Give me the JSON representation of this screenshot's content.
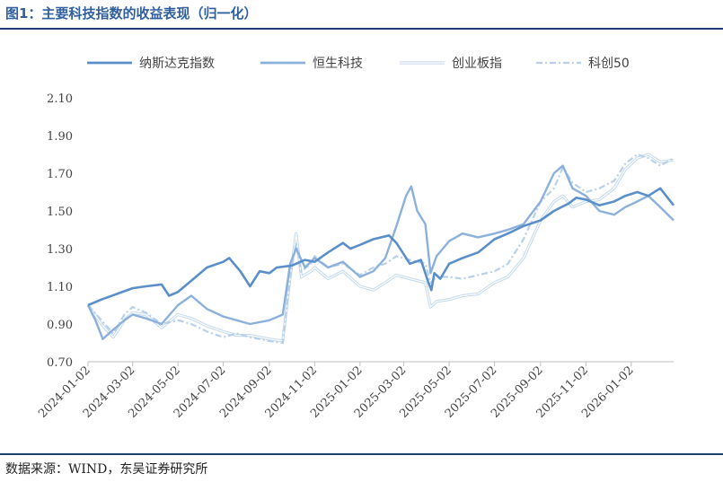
{
  "header": {
    "title": "图1：主要科技指数的收益表现（归一化）"
  },
  "footer": {
    "source": "数据来源：WIND，东吴证券研究所"
  },
  "chart_data": {
    "type": "line",
    "title": "主要科技指数的收益表现（归一化）",
    "xlabel": "",
    "ylabel": "",
    "ylim": [
      0.7,
      2.1
    ],
    "yticks": [
      "0.70",
      "0.90",
      "1.10",
      "1.30",
      "1.50",
      "1.70",
      "1.90",
      "2.10"
    ],
    "xticks": [
      "2024-01-02",
      "2024-03-02",
      "2024-05-02",
      "2024-07-02",
      "2024-09-02",
      "2024-11-02",
      "2025-01-02",
      "2025-03-02",
      "2025-05-02",
      "2025-07-02",
      "2025-09-02",
      "2025-11-02",
      "2026-01-02"
    ],
    "x_end": "2026-02-28",
    "legend_position": "top",
    "series": [
      {
        "name": "纳斯达克指数",
        "color": "#5b8fc9",
        "style": "solid",
        "points": [
          [
            "2024-01-02",
            1.0
          ],
          [
            "2024-01-20",
            1.03
          ],
          [
            "2024-02-10",
            1.06
          ],
          [
            "2024-03-02",
            1.09
          ],
          [
            "2024-03-20",
            1.1
          ],
          [
            "2024-04-10",
            1.11
          ],
          [
            "2024-04-20",
            1.05
          ],
          [
            "2024-05-02",
            1.07
          ],
          [
            "2024-05-20",
            1.13
          ],
          [
            "2024-06-10",
            1.2
          ],
          [
            "2024-07-02",
            1.23
          ],
          [
            "2024-07-10",
            1.25
          ],
          [
            "2024-07-25",
            1.18
          ],
          [
            "2024-08-07",
            1.1
          ],
          [
            "2024-08-20",
            1.18
          ],
          [
            "2024-09-02",
            1.17
          ],
          [
            "2024-09-12",
            1.2
          ],
          [
            "2024-10-02",
            1.21
          ],
          [
            "2024-10-20",
            1.24
          ],
          [
            "2024-11-02",
            1.23
          ],
          [
            "2024-11-20",
            1.28
          ],
          [
            "2024-12-10",
            1.33
          ],
          [
            "2024-12-20",
            1.3
          ],
          [
            "2025-01-02",
            1.32
          ],
          [
            "2025-01-20",
            1.35
          ],
          [
            "2025-02-10",
            1.37
          ],
          [
            "2025-02-20",
            1.33
          ],
          [
            "2025-03-10",
            1.22
          ],
          [
            "2025-03-25",
            1.24
          ],
          [
            "2025-04-04",
            1.12
          ],
          [
            "2025-04-08",
            1.08
          ],
          [
            "2025-04-12",
            1.17
          ],
          [
            "2025-04-20",
            1.14
          ],
          [
            "2025-05-02",
            1.22
          ],
          [
            "2025-05-20",
            1.25
          ],
          [
            "2025-06-10",
            1.28
          ],
          [
            "2025-07-02",
            1.35
          ],
          [
            "2025-07-20",
            1.38
          ],
          [
            "2025-08-10",
            1.42
          ],
          [
            "2025-09-02",
            1.45
          ],
          [
            "2025-09-20",
            1.5
          ],
          [
            "2025-10-10",
            1.54
          ],
          [
            "2025-10-20",
            1.57
          ],
          [
            "2025-11-02",
            1.56
          ],
          [
            "2025-11-20",
            1.53
          ],
          [
            "2025-12-10",
            1.55
          ],
          [
            "2025-12-25",
            1.58
          ],
          [
            "2026-01-10",
            1.6
          ],
          [
            "2026-01-25",
            1.58
          ],
          [
            "2026-02-10",
            1.62
          ],
          [
            "2026-02-28",
            1.53
          ]
        ]
      },
      {
        "name": "恒生科技",
        "color": "#8cb0dc",
        "style": "solid",
        "points": [
          [
            "2024-01-02",
            1.0
          ],
          [
            "2024-01-12",
            0.92
          ],
          [
            "2024-01-22",
            0.82
          ],
          [
            "2024-02-02",
            0.86
          ],
          [
            "2024-02-20",
            0.92
          ],
          [
            "2024-03-02",
            0.95
          ],
          [
            "2024-03-20",
            0.93
          ],
          [
            "2024-04-10",
            0.9
          ],
          [
            "2024-05-02",
            1.0
          ],
          [
            "2024-05-20",
            1.05
          ],
          [
            "2024-06-10",
            0.98
          ],
          [
            "2024-07-02",
            0.94
          ],
          [
            "2024-07-20",
            0.92
          ],
          [
            "2024-08-07",
            0.9
          ],
          [
            "2024-09-02",
            0.92
          ],
          [
            "2024-09-20",
            0.95
          ],
          [
            "2024-09-30",
            1.22
          ],
          [
            "2024-10-08",
            1.3
          ],
          [
            "2024-10-20",
            1.2
          ],
          [
            "2024-11-02",
            1.25
          ],
          [
            "2024-11-20",
            1.2
          ],
          [
            "2024-12-10",
            1.23
          ],
          [
            "2025-01-02",
            1.15
          ],
          [
            "2025-01-20",
            1.18
          ],
          [
            "2025-02-05",
            1.25
          ],
          [
            "2025-02-20",
            1.42
          ],
          [
            "2025-03-05",
            1.58
          ],
          [
            "2025-03-12",
            1.63
          ],
          [
            "2025-03-20",
            1.5
          ],
          [
            "2025-03-31",
            1.43
          ],
          [
            "2025-04-07",
            1.17
          ],
          [
            "2025-04-15",
            1.26
          ],
          [
            "2025-05-02",
            1.34
          ],
          [
            "2025-05-20",
            1.38
          ],
          [
            "2025-06-10",
            1.36
          ],
          [
            "2025-07-02",
            1.38
          ],
          [
            "2025-07-20",
            1.4
          ],
          [
            "2025-08-10",
            1.43
          ],
          [
            "2025-09-02",
            1.55
          ],
          [
            "2025-09-20",
            1.7
          ],
          [
            "2025-10-02",
            1.74
          ],
          [
            "2025-10-15",
            1.62
          ],
          [
            "2025-11-02",
            1.58
          ],
          [
            "2025-11-20",
            1.5
          ],
          [
            "2025-12-10",
            1.48
          ],
          [
            "2025-12-25",
            1.52
          ],
          [
            "2026-01-10",
            1.55
          ],
          [
            "2026-01-25",
            1.58
          ],
          [
            "2026-02-10",
            1.52
          ],
          [
            "2026-02-28",
            1.45
          ]
        ]
      },
      {
        "name": "创业板指",
        "color": "#c3d8ee",
        "style": "double",
        "points": [
          [
            "2024-01-02",
            1.0
          ],
          [
            "2024-01-20",
            0.9
          ],
          [
            "2024-02-05",
            0.83
          ],
          [
            "2024-02-20",
            0.92
          ],
          [
            "2024-03-02",
            0.96
          ],
          [
            "2024-03-20",
            0.95
          ],
          [
            "2024-04-10",
            0.88
          ],
          [
            "2024-05-02",
            0.95
          ],
          [
            "2024-05-20",
            0.93
          ],
          [
            "2024-06-10",
            0.89
          ],
          [
            "2024-07-02",
            0.86
          ],
          [
            "2024-07-20",
            0.84
          ],
          [
            "2024-08-07",
            0.84
          ],
          [
            "2024-09-02",
            0.82
          ],
          [
            "2024-09-20",
            0.81
          ],
          [
            "2024-09-30",
            1.15
          ],
          [
            "2024-10-08",
            1.38
          ],
          [
            "2024-10-15",
            1.15
          ],
          [
            "2024-10-28",
            1.18
          ],
          [
            "2024-11-02",
            1.2
          ],
          [
            "2024-11-20",
            1.14
          ],
          [
            "2024-12-10",
            1.18
          ],
          [
            "2025-01-02",
            1.1
          ],
          [
            "2025-01-20",
            1.08
          ],
          [
            "2025-02-05",
            1.12
          ],
          [
            "2025-02-20",
            1.16
          ],
          [
            "2025-03-10",
            1.14
          ],
          [
            "2025-03-31",
            1.12
          ],
          [
            "2025-04-07",
            0.99
          ],
          [
            "2025-04-15",
            1.02
          ],
          [
            "2025-05-02",
            1.03
          ],
          [
            "2025-05-20",
            1.05
          ],
          [
            "2025-06-10",
            1.06
          ],
          [
            "2025-07-02",
            1.12
          ],
          [
            "2025-07-20",
            1.15
          ],
          [
            "2025-08-10",
            1.25
          ],
          [
            "2025-09-02",
            1.45
          ],
          [
            "2025-09-20",
            1.55
          ],
          [
            "2025-10-02",
            1.58
          ],
          [
            "2025-10-15",
            1.52
          ],
          [
            "2025-11-02",
            1.55
          ],
          [
            "2025-11-20",
            1.56
          ],
          [
            "2025-12-10",
            1.62
          ],
          [
            "2025-12-25",
            1.72
          ],
          [
            "2026-01-10",
            1.78
          ],
          [
            "2026-01-25",
            1.8
          ],
          [
            "2026-02-10",
            1.76
          ],
          [
            "2026-02-28",
            1.77
          ]
        ]
      },
      {
        "name": "科创50",
        "color": "#b8d0ea",
        "style": "dashdot",
        "points": [
          [
            "2024-01-02",
            1.0
          ],
          [
            "2024-01-20",
            0.92
          ],
          [
            "2024-02-05",
            0.85
          ],
          [
            "2024-02-20",
            0.95
          ],
          [
            "2024-03-02",
            0.99
          ],
          [
            "2024-03-20",
            0.96
          ],
          [
            "2024-04-10",
            0.9
          ],
          [
            "2024-05-02",
            0.92
          ],
          [
            "2024-05-20",
            0.9
          ],
          [
            "2024-06-10",
            0.86
          ],
          [
            "2024-07-02",
            0.83
          ],
          [
            "2024-07-20",
            0.85
          ],
          [
            "2024-08-07",
            0.83
          ],
          [
            "2024-09-02",
            0.81
          ],
          [
            "2024-09-20",
            0.8
          ],
          [
            "2024-09-30",
            1.15
          ],
          [
            "2024-10-08",
            1.33
          ],
          [
            "2024-10-15",
            1.18
          ],
          [
            "2024-10-28",
            1.22
          ],
          [
            "2024-11-02",
            1.26
          ],
          [
            "2024-11-20",
            1.2
          ],
          [
            "2024-12-10",
            1.22
          ],
          [
            "2025-01-02",
            1.16
          ],
          [
            "2025-01-20",
            1.2
          ],
          [
            "2025-02-05",
            1.22
          ],
          [
            "2025-02-20",
            1.26
          ],
          [
            "2025-03-10",
            1.24
          ],
          [
            "2025-03-31",
            1.22
          ],
          [
            "2025-04-07",
            1.12
          ],
          [
            "2025-04-15",
            1.15
          ],
          [
            "2025-05-02",
            1.15
          ],
          [
            "2025-05-20",
            1.14
          ],
          [
            "2025-06-10",
            1.16
          ],
          [
            "2025-07-02",
            1.18
          ],
          [
            "2025-07-20",
            1.22
          ],
          [
            "2025-08-10",
            1.35
          ],
          [
            "2025-09-02",
            1.55
          ],
          [
            "2025-09-20",
            1.62
          ],
          [
            "2025-10-02",
            1.73
          ],
          [
            "2025-10-15",
            1.65
          ],
          [
            "2025-11-02",
            1.6
          ],
          [
            "2025-11-20",
            1.62
          ],
          [
            "2025-12-10",
            1.66
          ],
          [
            "2025-12-25",
            1.75
          ],
          [
            "2026-01-10",
            1.8
          ],
          [
            "2026-01-25",
            1.78
          ],
          [
            "2026-02-10",
            1.74
          ],
          [
            "2026-02-28",
            1.78
          ]
        ]
      }
    ]
  }
}
